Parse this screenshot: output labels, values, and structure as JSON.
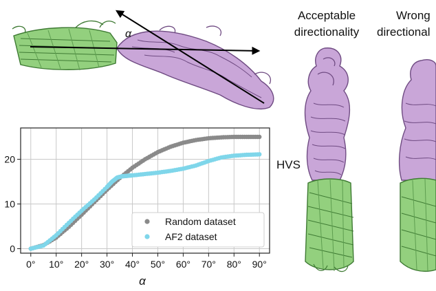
{
  "colors": {
    "beta_barrel": "#93d07e",
    "beta_barrel_edge": "#3e7a33",
    "passenger": "#c9a6d8",
    "passenger_edge": "#6f4b82",
    "random_series": "#8a8a8a",
    "af2_series": "#7fd6ea",
    "arrow": "#000000"
  },
  "top_diagram": {
    "angle_label": "α"
  },
  "panels": {
    "acceptable_line1": "Acceptable",
    "acceptable_line2": "directionality",
    "wrong_line1": "Wrong",
    "wrong_line2": "directional",
    "hvs_label": "HVS"
  },
  "chart_data": {
    "type": "scatter",
    "xlabel": "α",
    "ylabel": "",
    "xlim": [
      -4,
      94
    ],
    "ylim": [
      -1,
      27
    ],
    "xticks": [
      0,
      10,
      20,
      30,
      40,
      50,
      60,
      70,
      80,
      90
    ],
    "xtick_labels": [
      "0°",
      "10°",
      "20°",
      "30°",
      "40°",
      "50°",
      "60°",
      "70°",
      "80°",
      "90°"
    ],
    "yticks": [
      0,
      10,
      20
    ],
    "ytick_labels": [
      "0",
      "10",
      "20"
    ],
    "grid": true,
    "legend_position": "bottom-right",
    "series": [
      {
        "name": "Random dataset",
        "color": "#8a8a8a",
        "x": [
          0,
          5,
          10,
          15,
          20,
          25,
          30,
          35,
          40,
          45,
          50,
          55,
          60,
          65,
          70,
          75,
          80,
          85,
          90
        ],
        "y": [
          0,
          0.8,
          2.5,
          4.9,
          7.6,
          10.4,
          13.2,
          15.8,
          18.1,
          20.0,
          21.6,
          22.8,
          23.7,
          24.3,
          24.7,
          24.9,
          25.0,
          25.0,
          25.0
        ]
      },
      {
        "name": "AF2 dataset",
        "color": "#7fd6ea",
        "x": [
          0,
          5,
          10,
          15,
          20,
          25,
          30,
          32,
          34,
          36,
          38,
          40,
          45,
          50,
          55,
          60,
          65,
          70,
          75,
          80,
          85,
          90
        ],
        "y": [
          0,
          0.7,
          3.0,
          5.8,
          8.5,
          11.0,
          13.8,
          15.0,
          15.9,
          16.2,
          16.3,
          16.4,
          16.7,
          17.0,
          17.4,
          17.9,
          18.6,
          19.6,
          20.4,
          20.8,
          21.0,
          21.1
        ]
      }
    ]
  }
}
